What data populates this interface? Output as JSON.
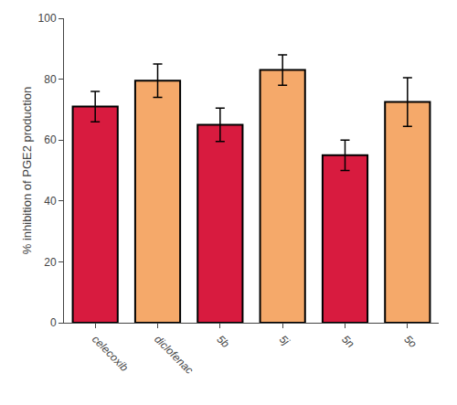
{
  "chart_data": {
    "type": "bar",
    "categories": [
      "celecoxib",
      "diclofenac",
      "5b",
      "5j",
      "5n",
      "5o"
    ],
    "values": [
      71.0,
      79.5,
      65.0,
      83.0,
      55.0,
      72.5
    ],
    "errors": [
      5.0,
      5.5,
      5.5,
      5.0,
      5.0,
      8.0
    ],
    "colors": [
      "#D81B3F",
      "#F5A96A",
      "#D81B3F",
      "#F5A96A",
      "#D81B3F",
      "#F5A96A"
    ],
    "ylabel": "% inhibition of PGE2 production",
    "ylim": [
      0,
      100
    ],
    "yticks": [
      0,
      20,
      40,
      60,
      80,
      100
    ],
    "grid": false
  }
}
